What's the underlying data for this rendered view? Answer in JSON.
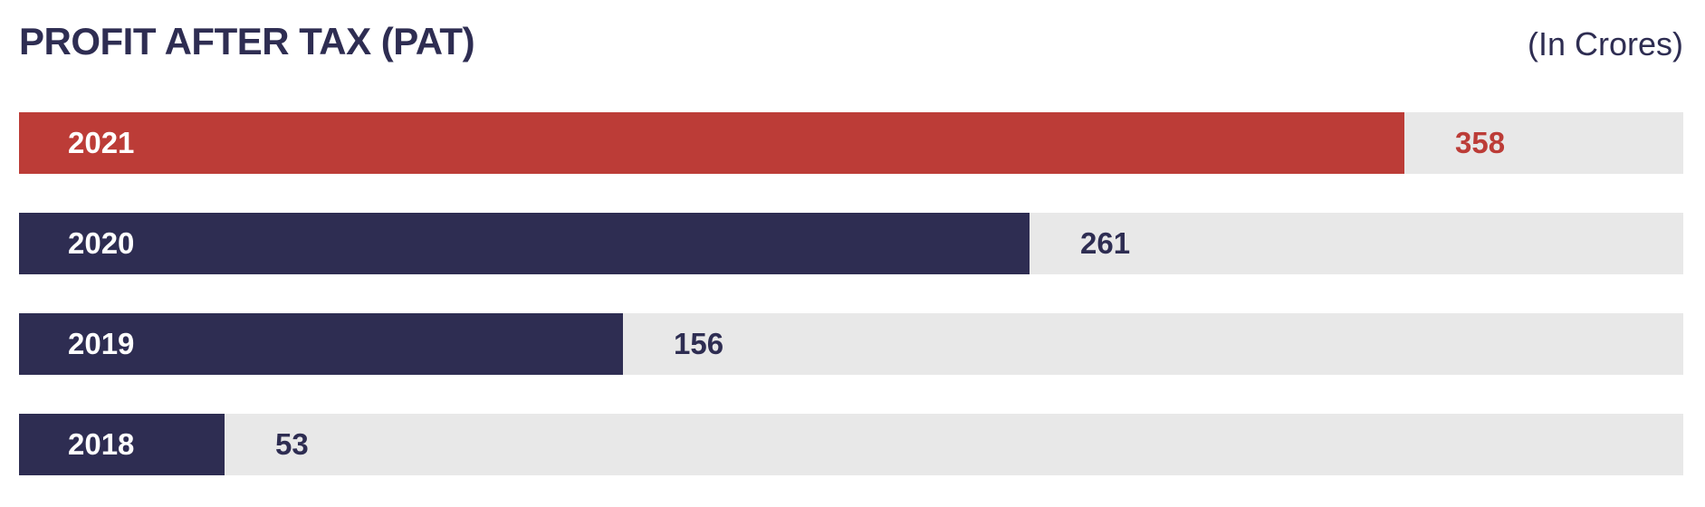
{
  "header": {
    "title": "PROFIT AFTER TAX (PAT)",
    "unit_note": "(In Crores)"
  },
  "colors": {
    "highlight": "#bc3c37",
    "base": "#2e2d52",
    "track": "#e8e8e8",
    "label_on_bar": "#ffffff"
  },
  "chart_data": {
    "type": "bar",
    "orientation": "horizontal",
    "title": "PROFIT AFTER TAX (PAT)",
    "unit": "(In Crores)",
    "categories": [
      "2021",
      "2020",
      "2019",
      "2018"
    ],
    "values": [
      358,
      261,
      156,
      53
    ],
    "highlighted_category": "2021",
    "xlim": [
      0,
      430
    ],
    "grid": false,
    "axes_visible": false,
    "data_labels": true
  }
}
